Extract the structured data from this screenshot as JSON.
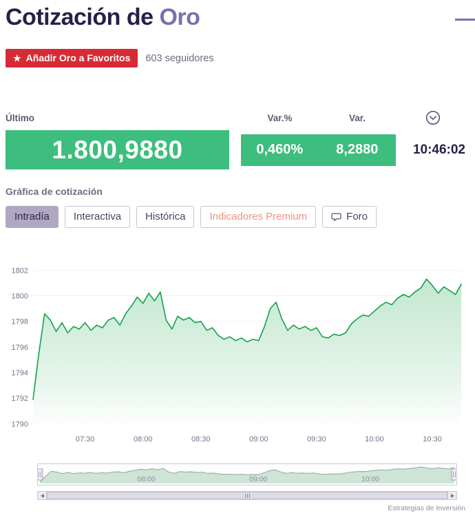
{
  "header": {
    "title_prefix": "Cotización de",
    "title_instrument": "Oro",
    "favorite_button_label": "Añadir Oro a Favoritos",
    "followers": "603 seguidores"
  },
  "quote": {
    "last_label": "Último",
    "var_pct_label": "Var.%",
    "var_label": "Var.",
    "last_value": "1.800,9880",
    "var_pct_value": "0,460%",
    "var_value": "8,2880",
    "time": "10:46:02"
  },
  "section": {
    "chart_heading": "Gráfica de cotización"
  },
  "tabs": [
    {
      "label": "Intradía",
      "active": true
    },
    {
      "label": "Interactiva",
      "active": false
    },
    {
      "label": "Histórica",
      "active": false
    },
    {
      "label": "Indicadores Premium",
      "active": false
    },
    {
      "label": "Foro",
      "active": false
    }
  ],
  "colors": {
    "accent_purple": "#7b6fae",
    "dark_navy": "#272148",
    "quote_green": "#3dbd7e",
    "favorite_red": "#d62b35",
    "premium_salmon": "#f0917b",
    "chart_line_green": "#13a14a",
    "active_tab_bg": "#b0a8c2"
  },
  "chart_data": {
    "type": "area",
    "title": "Gráfica de cotización",
    "xlabel": "",
    "ylabel": "",
    "x": [
      "07:03",
      "07:06",
      "07:09",
      "07:12",
      "07:15",
      "07:18",
      "07:21",
      "07:24",
      "07:27",
      "07:30",
      "07:33",
      "07:36",
      "07:39",
      "07:42",
      "07:45",
      "07:48",
      "07:51",
      "07:54",
      "07:57",
      "08:00",
      "08:03",
      "08:06",
      "08:09",
      "08:12",
      "08:15",
      "08:18",
      "08:21",
      "08:24",
      "08:27",
      "08:30",
      "08:33",
      "08:36",
      "08:39",
      "08:42",
      "08:45",
      "08:48",
      "08:51",
      "08:54",
      "08:57",
      "09:00",
      "09:03",
      "09:06",
      "09:09",
      "09:12",
      "09:15",
      "09:18",
      "09:21",
      "09:24",
      "09:27",
      "09:30",
      "09:33",
      "09:36",
      "09:39",
      "09:42",
      "09:45",
      "09:48",
      "09:51",
      "09:54",
      "09:57",
      "10:00",
      "10:03",
      "10:06",
      "10:09",
      "10:12",
      "10:15",
      "10:18",
      "10:21",
      "10:24",
      "10:27",
      "10:30",
      "10:33",
      "10:36",
      "10:39",
      "10:42",
      "10:45"
    ],
    "values": [
      1791.9,
      1795.5,
      1798.6,
      1798.1,
      1797.2,
      1797.9,
      1797.1,
      1797.6,
      1797.4,
      1797.9,
      1797.3,
      1797.7,
      1797.5,
      1798.1,
      1798.3,
      1797.7,
      1798.6,
      1799.2,
      1799.9,
      1799.4,
      1800.2,
      1799.6,
      1800.3,
      1798.1,
      1797.4,
      1798.4,
      1798.1,
      1798.3,
      1797.9,
      1798.0,
      1797.3,
      1797.5,
      1796.9,
      1796.6,
      1796.8,
      1796.5,
      1796.7,
      1796.4,
      1796.6,
      1796.5,
      1797.6,
      1799.0,
      1799.5,
      1798.2,
      1797.3,
      1797.7,
      1797.4,
      1797.6,
      1797.3,
      1797.5,
      1796.8,
      1796.7,
      1797.0,
      1796.9,
      1797.1,
      1797.8,
      1798.2,
      1798.5,
      1798.4,
      1798.8,
      1799.2,
      1799.5,
      1799.3,
      1799.8,
      1800.1,
      1799.9,
      1800.3,
      1800.6,
      1801.3,
      1800.8,
      1800.2,
      1800.7,
      1800.4,
      1800.1,
      1800.9
    ],
    "ylim": [
      1789.7,
      1802.5
    ],
    "yticks": [
      1790,
      1792,
      1794,
      1796,
      1798,
      1800,
      1802
    ],
    "xticks": [
      "07:30",
      "08:00",
      "08:30",
      "09:00",
      "09:30",
      "10:00",
      "10:30"
    ],
    "navigator_xticks": [
      "08:00",
      "09:00",
      "10:00"
    ],
    "grid": true,
    "legend": "none",
    "line_color": "#13a14a",
    "fill_top": "#c3e7d0",
    "fill_bottom": "#ffffff",
    "navigator_fill": "#cde4d6",
    "navigator_line": "#8aab97"
  },
  "footer": {
    "credit": "Estrategias de Inversión"
  }
}
